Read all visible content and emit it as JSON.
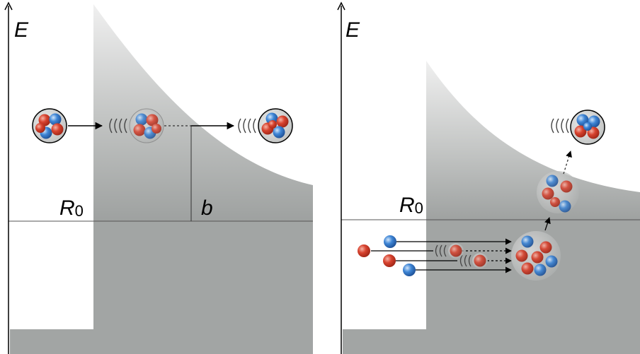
{
  "left_panel": {
    "axis_label": "E",
    "radius_label": "R",
    "radius_subscript": "0",
    "turning_point_label": "b"
  },
  "right_panel": {
    "axis_label": "E",
    "radius_label": "R",
    "radius_subscript": "0"
  },
  "colors": {
    "barrier_top": "#ececec",
    "barrier_bottom": "#9fa2a1",
    "well": "#a2a5a4",
    "proton": "#d8432f",
    "neutron": "#3f86d6"
  },
  "icons": [
    "alpha-particle-icon",
    "wave-arcs-icon",
    "proton-icon",
    "neutron-icon",
    "compound-nucleus-icon"
  ]
}
